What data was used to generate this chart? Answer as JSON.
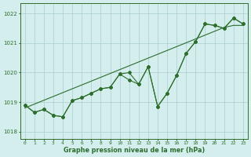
{
  "xlabel": "Graphe pression niveau de la mer (hPa)",
  "hours": [
    0,
    1,
    2,
    3,
    4,
    5,
    6,
    7,
    8,
    9,
    10,
    11,
    12,
    13,
    14,
    15,
    16,
    17,
    18,
    19,
    20,
    21,
    22,
    23
  ],
  "line1": [
    1018.9,
    1018.65,
    1018.75,
    1018.55,
    1018.5,
    1019.05,
    1019.15,
    1019.3,
    1019.45,
    1019.5,
    1019.95,
    1020.0,
    1019.6,
    1020.2,
    1018.85,
    1019.3,
    1019.9,
    1020.65,
    1021.05,
    1021.65,
    1021.6,
    1021.5,
    1021.85,
    1021.65
  ],
  "line2": [
    1018.9,
    1018.65,
    1018.75,
    1018.55,
    1018.5,
    1019.05,
    1019.15,
    1019.3,
    1019.45,
    1019.5,
    1019.95,
    1019.75,
    1019.6,
    1020.2,
    1018.85,
    1019.3,
    1019.9,
    1020.65,
    1021.05,
    1021.65,
    1021.6,
    1021.5,
    1021.85,
    1021.65
  ],
  "trend": [
    1018.8,
    1018.93,
    1019.06,
    1019.19,
    1019.32,
    1019.45,
    1019.58,
    1019.71,
    1019.84,
    1019.97,
    1020.1,
    1020.23,
    1020.36,
    1020.49,
    1020.62,
    1020.75,
    1020.88,
    1021.01,
    1021.14,
    1021.27,
    1021.4,
    1021.53,
    1021.6,
    1021.6
  ],
  "line_color": "#2d6e2d",
  "bg_color": "#d4eeee",
  "grid_color": "#a8cece",
  "ylim_min": 1017.75,
  "ylim_max": 1022.35,
  "yticks": [
    1018,
    1019,
    1020,
    1021,
    1022
  ],
  "marker": "D",
  "marker_size": 2.0,
  "linewidth": 0.8,
  "tick_fontsize": 4.5,
  "label_fontsize": 5.8
}
